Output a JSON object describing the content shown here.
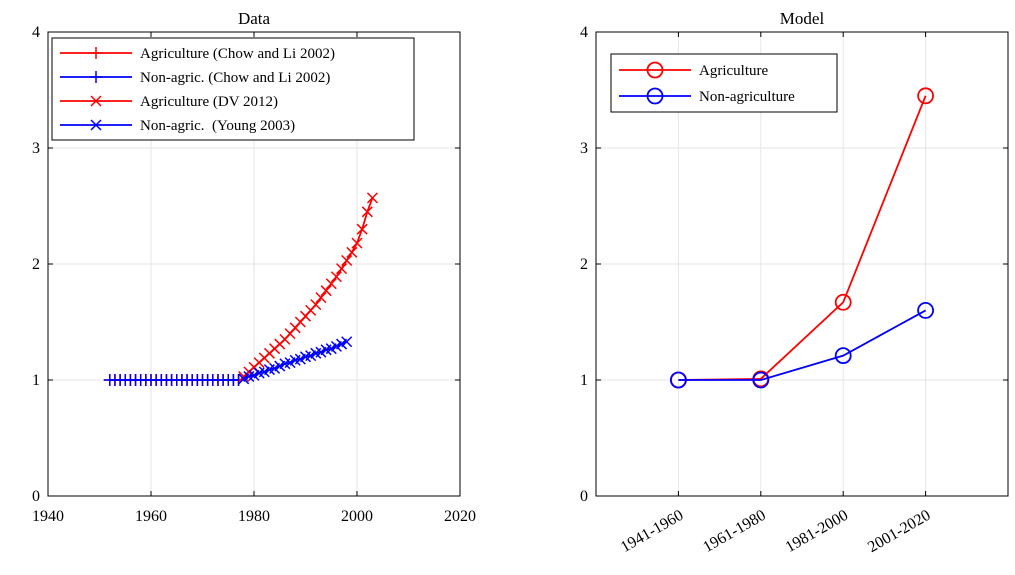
{
  "chart_data": [
    {
      "type": "line",
      "title": "Data",
      "xlabel": "",
      "ylabel": "",
      "xlim": [
        1940,
        2020
      ],
      "ylim": [
        0,
        4
      ],
      "xticks": [
        1940,
        1960,
        1980,
        2000,
        2020
      ],
      "yticks": [
        0,
        1,
        2,
        3,
        4
      ],
      "grid": true,
      "legend_position": "top-left",
      "series": [
        {
          "name": "Agriculture (Chow and Li 2002)",
          "color": "#ff0000",
          "marker": "plus",
          "x": [
            1952,
            1953,
            1954,
            1955,
            1956,
            1957,
            1958,
            1959,
            1960,
            1961,
            1962,
            1963,
            1964,
            1965,
            1966,
            1967,
            1968,
            1969,
            1970,
            1971,
            1972,
            1973,
            1974,
            1975,
            1976,
            1977
          ],
          "y": [
            1,
            1,
            1,
            1,
            1,
            1,
            1,
            1,
            1,
            1,
            1,
            1,
            1,
            1,
            1,
            1,
            1,
            1,
            1,
            1,
            1,
            1,
            1,
            1,
            1,
            1
          ]
        },
        {
          "name": "Non-agric. (Chow and Li 2002)",
          "color": "#0000ff",
          "marker": "plus",
          "x": [
            1952,
            1953,
            1954,
            1955,
            1956,
            1957,
            1958,
            1959,
            1960,
            1961,
            1962,
            1963,
            1964,
            1965,
            1966,
            1967,
            1968,
            1969,
            1970,
            1971,
            1972,
            1973,
            1974,
            1975,
            1976,
            1977
          ],
          "y": [
            1,
            1,
            1,
            1,
            1,
            1,
            1,
            1,
            1,
            1,
            1,
            1,
            1,
            1,
            1,
            1,
            1,
            1,
            1,
            1,
            1,
            1,
            1,
            1,
            1,
            1
          ]
        },
        {
          "name": "Agriculture (DV 2012)",
          "color": "#ff0000",
          "marker": "x",
          "x": [
            1978,
            1979,
            1980,
            1981,
            1982,
            1983,
            1984,
            1985,
            1986,
            1987,
            1988,
            1989,
            1990,
            1991,
            1992,
            1993,
            1994,
            1995,
            1996,
            1997,
            1998,
            1999,
            2000,
            2001,
            2002,
            2003
          ],
          "y": [
            1.03,
            1.07,
            1.11,
            1.15,
            1.19,
            1.23,
            1.27,
            1.31,
            1.35,
            1.4,
            1.45,
            1.5,
            1.55,
            1.6,
            1.65,
            1.71,
            1.77,
            1.83,
            1.89,
            1.96,
            2.03,
            2.1,
            2.18,
            2.3,
            2.45,
            2.57
          ]
        },
        {
          "name": "Non-agric.  (Young 2003)",
          "color": "#0000ff",
          "marker": "x",
          "x": [
            1978,
            1979,
            1980,
            1981,
            1982,
            1983,
            1984,
            1985,
            1986,
            1987,
            1988,
            1989,
            1990,
            1991,
            1992,
            1993,
            1994,
            1995,
            1996,
            1997,
            1998
          ],
          "y": [
            1.01,
            1.03,
            1.04,
            1.06,
            1.07,
            1.09,
            1.1,
            1.12,
            1.14,
            1.15,
            1.17,
            1.18,
            1.2,
            1.21,
            1.23,
            1.24,
            1.26,
            1.27,
            1.29,
            1.31,
            1.33
          ]
        }
      ]
    },
    {
      "type": "line",
      "title": "Model",
      "xlabel": "",
      "ylabel": "",
      "categories": [
        "1941-1960",
        "1961-1980",
        "1981-2000",
        "2001-2020"
      ],
      "ylim": [
        0,
        4
      ],
      "yticks": [
        0,
        1,
        2,
        3,
        4
      ],
      "grid": true,
      "legend_position": "top-left",
      "series": [
        {
          "name": "Agriculture",
          "color": "#ff0000",
          "marker": "circle",
          "values": [
            1.0,
            1.01,
            1.67,
            3.45
          ]
        },
        {
          "name": "Non-agriculture",
          "color": "#0000ff",
          "marker": "circle",
          "values": [
            1.0,
            1.0,
            1.21,
            1.6
          ]
        }
      ]
    }
  ]
}
